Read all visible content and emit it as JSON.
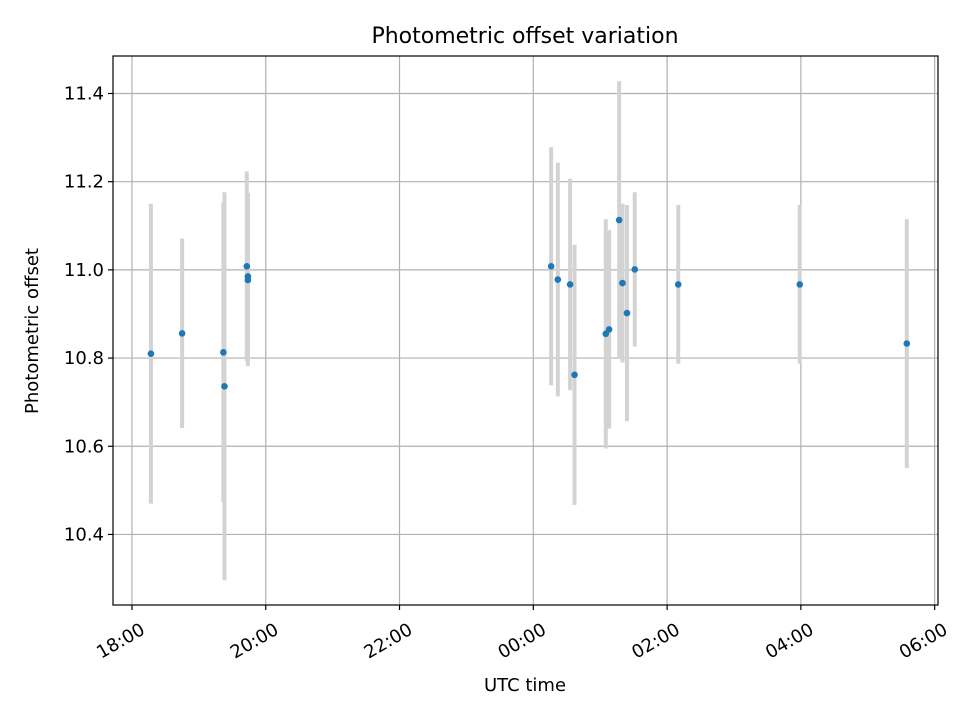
{
  "chart_data": {
    "type": "scatter",
    "title": "Photometric offset variation",
    "xlabel": "UTC time",
    "ylabel": "Photometric offset",
    "x_axis": {
      "kind": "time",
      "range": [
        "17:43",
        "06:03"
      ],
      "ticks": [
        "18:00",
        "20:00",
        "22:00",
        "00:00",
        "02:00",
        "04:00",
        "06:00"
      ]
    },
    "y_axis": {
      "range": [
        10.24,
        11.485
      ],
      "ticks": [
        "10.4",
        "10.6",
        "10.8",
        "11.0",
        "11.2",
        "11.4"
      ]
    },
    "grid": true,
    "marker_color": "#1f77b4",
    "errorbar_color": "#d3d3d3",
    "points": [
      {
        "time": "18:17",
        "y": 10.81,
        "yerr": 0.34
      },
      {
        "time": "18:45",
        "y": 10.856,
        "yerr": 0.215
      },
      {
        "time": "19:22",
        "y": 10.813,
        "yerr": 0.34
      },
      {
        "time": "19:23",
        "y": 10.736,
        "yerr": 0.44
      },
      {
        "time": "19:43",
        "y": 11.008,
        "yerr": 0.215
      },
      {
        "time": "19:44",
        "y": 10.985,
        "yerr": 0.19
      },
      {
        "time": "19:44",
        "y": 10.977,
        "yerr": 0.195
      },
      {
        "time": "00:16",
        "y": 11.008,
        "yerr": 0.27
      },
      {
        "time": "00:22",
        "y": 10.978,
        "yerr": 0.265
      },
      {
        "time": "00:33",
        "y": 10.967,
        "yerr": 0.24
      },
      {
        "time": "00:37",
        "y": 10.762,
        "yerr": 0.295
      },
      {
        "time": "01:05",
        "y": 10.855,
        "yerr": 0.26
      },
      {
        "time": "01:08",
        "y": 10.865,
        "yerr": 0.225
      },
      {
        "time": "01:17",
        "y": 11.113,
        "yerr": 0.315
      },
      {
        "time": "01:20",
        "y": 10.97,
        "yerr": 0.18
      },
      {
        "time": "01:24",
        "y": 10.902,
        "yerr": 0.245
      },
      {
        "time": "01:31",
        "y": 11.001,
        "yerr": 0.175
      },
      {
        "time": "02:10",
        "y": 10.967,
        "yerr": 0.18
      },
      {
        "time": "03:59",
        "y": 10.967,
        "yerr": 0.18
      },
      {
        "time": "05:35",
        "y": 10.833,
        "yerr": 0.282
      }
    ]
  }
}
